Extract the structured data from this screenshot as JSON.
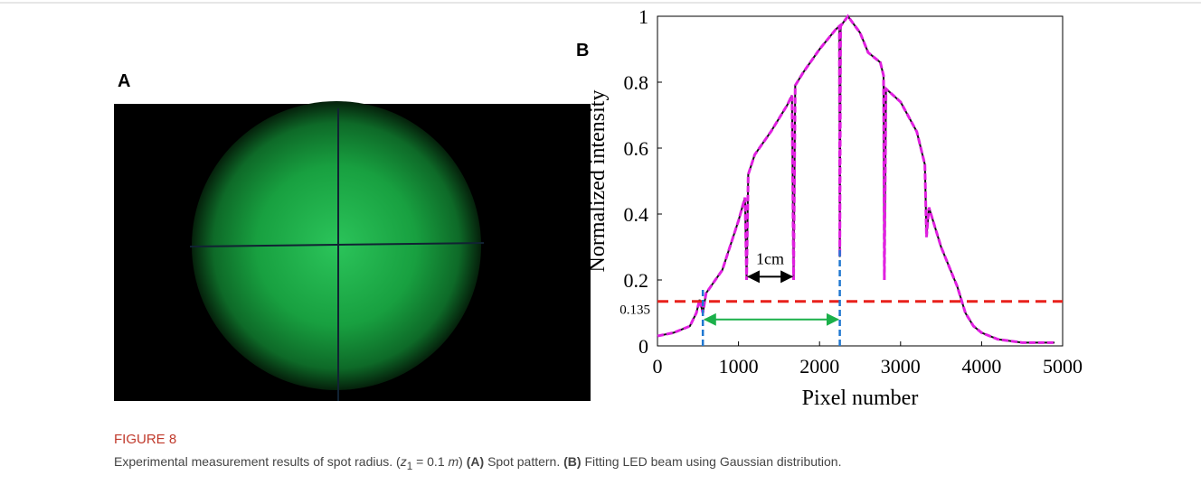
{
  "panel_a": {
    "label": "A"
  },
  "figure_label": "FIGURE 8",
  "caption": {
    "intro": "Experimental measurement results of spot radius. (",
    "var": "z",
    "sub": "1",
    "eq": " = 0.1 ",
    "unit": "m",
    "close": ")",
    "a_label": "(A)",
    "a_text": "Spot pattern.",
    "b_label": "(B)",
    "b_text": "Fitting LED beam using Gaussian distribution."
  },
  "chart_data": {
    "type": "line",
    "panel_label": "B",
    "x_label": "Pixel number",
    "y_label": "Normalized intensity",
    "xlim": [
      0,
      5000
    ],
    "xticks": [
      0,
      1000,
      2000,
      3000,
      4000,
      5000
    ],
    "ylim": [
      0,
      1
    ],
    "yticks": [
      0,
      0.2,
      0.4,
      0.6,
      0.8,
      1
    ],
    "x": [
      0,
      200,
      400,
      480,
      520,
      560,
      600,
      800,
      1000,
      1080,
      1100,
      1120,
      1200,
      1400,
      1600,
      1660,
      1680,
      1700,
      1800,
      2000,
      2200,
      2245,
      2250,
      2260,
      2350,
      2500,
      2600,
      2750,
      2790,
      2800,
      2820,
      3000,
      3200,
      3300,
      3320,
      3350,
      3500,
      3700,
      3800,
      3900,
      4000,
      4200,
      4500,
      4900
    ],
    "series": [
      {
        "color": "#111111",
        "values": [
          0.03,
          0.04,
          0.06,
          0.1,
          0.14,
          0.1,
          0.16,
          0.23,
          0.38,
          0.45,
          0.2,
          0.52,
          0.58,
          0.65,
          0.73,
          0.76,
          0.2,
          0.79,
          0.83,
          0.9,
          0.96,
          0.97,
          0.27,
          0.97,
          1.0,
          0.95,
          0.89,
          0.86,
          0.82,
          0.2,
          0.78,
          0.74,
          0.65,
          0.55,
          0.33,
          0.42,
          0.3,
          0.18,
          0.1,
          0.06,
          0.04,
          0.02,
          0.01,
          0.01
        ]
      },
      {
        "color": "#e020e0",
        "values": [
          0.03,
          0.04,
          0.06,
          0.1,
          0.14,
          0.1,
          0.16,
          0.23,
          0.38,
          0.45,
          0.2,
          0.52,
          0.58,
          0.65,
          0.73,
          0.76,
          0.2,
          0.79,
          0.83,
          0.9,
          0.96,
          0.97,
          0.27,
          0.97,
          1.0,
          0.95,
          0.89,
          0.86,
          0.82,
          0.2,
          0.78,
          0.74,
          0.65,
          0.55,
          0.33,
          0.42,
          0.3,
          0.18,
          0.1,
          0.06,
          0.04,
          0.02,
          0.01,
          0.01
        ]
      }
    ],
    "threshold": {
      "value": 0.135,
      "label": "0.135",
      "color": "#e8211c"
    },
    "markers": {
      "x": [
        560,
        2250
      ],
      "top": [
        0.17,
        0.3
      ],
      "color": "#1f77d0"
    },
    "span_arrow": {
      "x": [
        560,
        2250
      ],
      "y": 0.08,
      "color": "#1bb04a"
    },
    "scale_arrow": {
      "x": [
        1120,
        1660
      ],
      "y": 0.21,
      "label": "1cm"
    }
  }
}
